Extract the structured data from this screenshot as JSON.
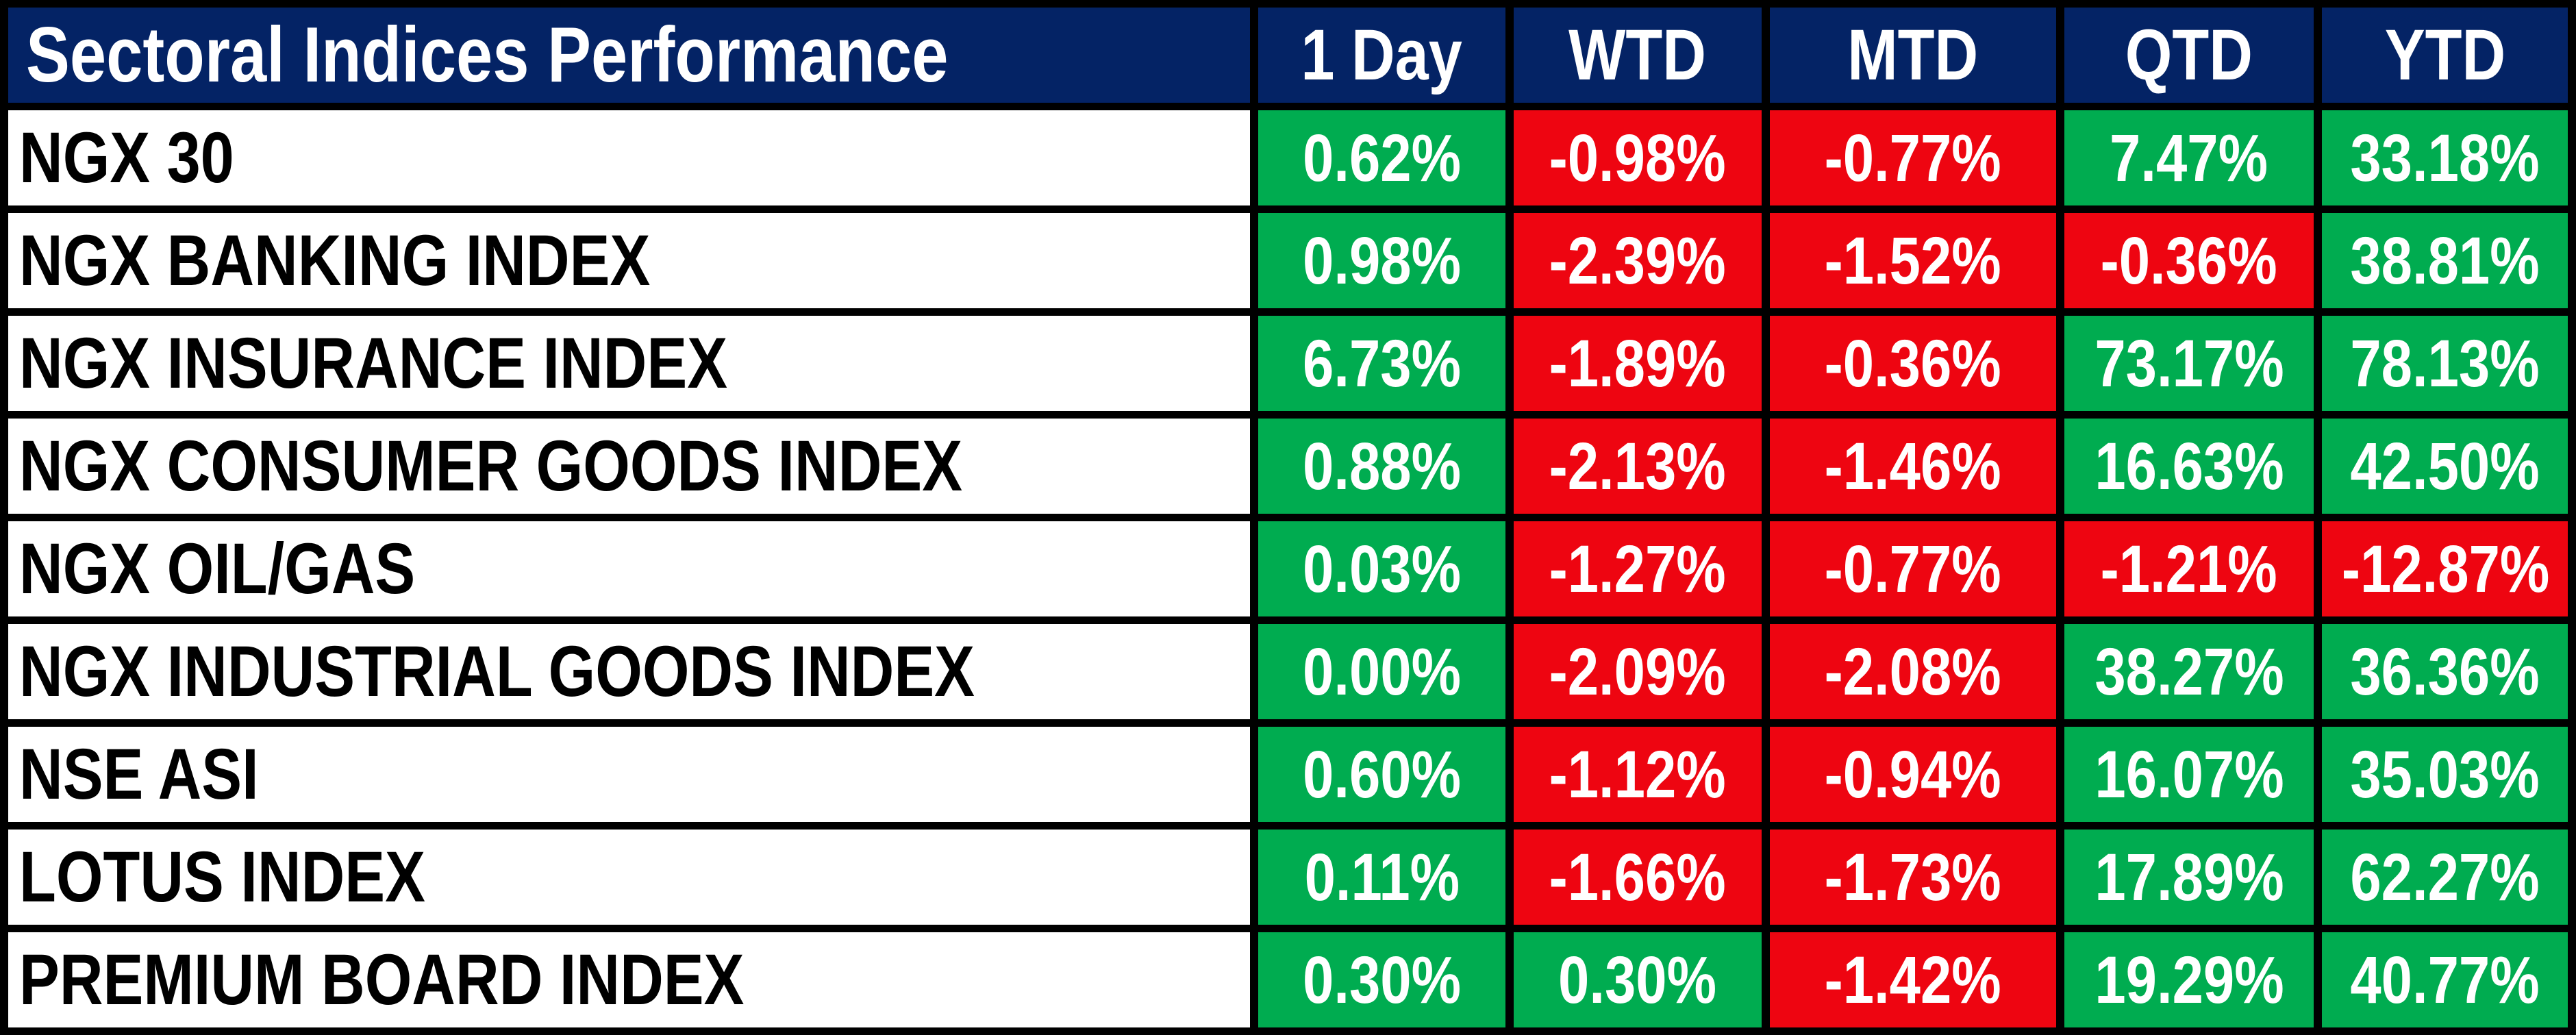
{
  "table": {
    "title": "Sectoral Indices Performance",
    "columns": [
      "1 Day",
      "WTD",
      "MTD",
      "QTD",
      "YTD"
    ],
    "rows": [
      {
        "label": "NGX 30",
        "values": [
          "0.62%",
          "-0.98%",
          "-0.77%",
          "7.47%",
          "33.18%"
        ]
      },
      {
        "label": "NGX BANKING INDEX",
        "values": [
          "0.98%",
          "-2.39%",
          "-1.52%",
          "-0.36%",
          "38.81%"
        ]
      },
      {
        "label": "NGX INSURANCE INDEX",
        "values": [
          "6.73%",
          "-1.89%",
          "-0.36%",
          "73.17%",
          "78.13%"
        ]
      },
      {
        "label": "NGX CONSUMER GOODS INDEX",
        "values": [
          "0.88%",
          "-2.13%",
          "-1.46%",
          "16.63%",
          "42.50%"
        ]
      },
      {
        "label": "NGX OIL/GAS",
        "values": [
          "0.03%",
          "-1.27%",
          "-0.77%",
          "-1.21%",
          "-12.87%"
        ]
      },
      {
        "label": "NGX INDUSTRIAL GOODS INDEX",
        "values": [
          "0.00%",
          "-2.09%",
          "-2.08%",
          "38.27%",
          "36.36%"
        ]
      },
      {
        "label": "NSE ASI",
        "values": [
          "0.60%",
          "-1.12%",
          "-0.94%",
          "16.07%",
          "35.03%"
        ]
      },
      {
        "label": "LOTUS INDEX",
        "values": [
          "0.11%",
          "-1.66%",
          "-1.73%",
          "17.89%",
          "62.27%"
        ]
      },
      {
        "label": "PREMIUM BOARD INDEX",
        "values": [
          "0.30%",
          "0.30%",
          "-1.42%",
          "19.29%",
          "40.77%"
        ]
      }
    ],
    "colors": {
      "header_bg": "#042365",
      "header_fg": "#FFFFFF",
      "row_bg": "#FFFFFF",
      "row_fg": "#000000",
      "positive_bg": "#00AC50",
      "negative_bg": "#EE0511",
      "value_fg": "#FFFFFF",
      "grid": "#000000"
    }
  },
  "chart_data": {
    "type": "table",
    "title": "Sectoral Indices Performance",
    "columns": [
      "1 Day",
      "WTD",
      "MTD",
      "QTD",
      "YTD"
    ],
    "unit": "percent",
    "rows": [
      {
        "label": "NGX 30",
        "values": [
          0.62,
          -0.98,
          -0.77,
          7.47,
          33.18
        ]
      },
      {
        "label": "NGX BANKING INDEX",
        "values": [
          0.98,
          -2.39,
          -1.52,
          -0.36,
          38.81
        ]
      },
      {
        "label": "NGX INSURANCE INDEX",
        "values": [
          6.73,
          -1.89,
          -0.36,
          73.17,
          78.13
        ]
      },
      {
        "label": "NGX CONSUMER GOODS INDEX",
        "values": [
          0.88,
          -2.13,
          -1.46,
          16.63,
          42.5
        ]
      },
      {
        "label": "NGX OIL/GAS",
        "values": [
          0.03,
          -1.27,
          -0.77,
          -1.21,
          -12.87
        ]
      },
      {
        "label": "NGX INDUSTRIAL GOODS INDEX",
        "values": [
          0.0,
          -2.09,
          -2.08,
          38.27,
          36.36
        ]
      },
      {
        "label": "NSE ASI",
        "values": [
          0.6,
          -1.12,
          -0.94,
          16.07,
          35.03
        ]
      },
      {
        "label": "LOTUS INDEX",
        "values": [
          0.11,
          -1.66,
          -1.73,
          17.89,
          62.27
        ]
      },
      {
        "label": "PREMIUM BOARD INDEX",
        "values": [
          0.3,
          0.3,
          -1.42,
          19.29,
          40.77
        ]
      }
    ],
    "color_rule": "cell background green (#00AC50) if value >= 0, red (#EE0511) if value < 0; white bold text",
    "layout": "first column row labels on white, navy header row, black gridline gaps"
  }
}
